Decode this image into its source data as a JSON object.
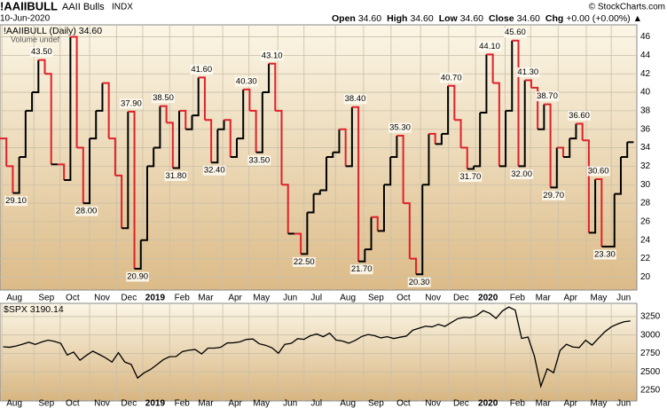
{
  "header": {
    "symbol": "!AAIIBULL",
    "name": "AAII Bulls",
    "exchange": "INDX",
    "date": "10-Jun-2020",
    "quote": [
      {
        "label": "Open",
        "value": "34.60"
      },
      {
        "label": "High",
        "value": "34.60"
      },
      {
        "label": "Low",
        "value": "34.60"
      },
      {
        "label": "Close",
        "value": "34.60"
      },
      {
        "label": "Chg",
        "value": "+0.00 (+0.00%) ▲"
      }
    ],
    "credit": "© StockCharts.com"
  },
  "chart_data": [
    {
      "type": "step",
      "legend": "!AAIIBULL (Daily) 34.60",
      "volume_note": "Volume undef",
      "series": [
        {
          "name": "!AAIIBULL",
          "color": "#000000",
          "down_color": "#e0202a",
          "values": [
            35,
            32,
            29.1,
            33,
            38,
            40,
            43.5,
            42,
            32.2,
            32.2,
            30.5,
            46,
            34,
            28,
            35,
            38,
            41,
            35,
            31,
            25.3,
            37.9,
            20.9,
            24,
            32,
            34,
            38.5,
            36.7,
            31.8,
            38,
            36,
            37.5,
            41.6,
            37,
            32.4,
            36,
            37,
            33,
            35,
            40.3,
            38,
            33.5,
            40,
            43.1,
            38,
            30,
            24.7,
            24.7,
            22.5,
            27,
            29,
            29.4,
            33,
            33.5,
            36,
            32,
            38.4,
            21.7,
            23,
            26.5,
            25,
            30,
            33,
            35.3,
            28,
            22,
            20.3,
            30,
            35.5,
            34.4,
            35.5,
            40.7,
            37,
            34,
            31.7,
            32,
            37.8,
            44.1,
            41,
            32,
            38,
            45.6,
            32,
            41.3,
            40.5,
            36,
            38.7,
            29.7,
            34,
            33,
            35,
            36.6,
            34.8,
            24.8,
            30.6,
            23.3,
            23.3,
            29,
            33,
            34.6
          ],
          "value_labels": [
            null,
            null,
            "29.10",
            null,
            null,
            null,
            "43.50",
            null,
            null,
            null,
            null,
            null,
            null,
            "28.00",
            null,
            null,
            null,
            null,
            null,
            null,
            "37.90",
            "20.90",
            null,
            null,
            null,
            "38.50",
            null,
            "31.80",
            null,
            null,
            null,
            "41.60",
            null,
            "32.40",
            null,
            null,
            null,
            null,
            "40.30",
            null,
            "33.50",
            null,
            "43.10",
            null,
            null,
            null,
            null,
            "22.50",
            null,
            null,
            null,
            null,
            null,
            null,
            null,
            "38.40",
            "21.70",
            null,
            null,
            null,
            null,
            null,
            "35.30",
            null,
            null,
            "20.30",
            null,
            null,
            null,
            null,
            "40.70",
            null,
            null,
            "31.70",
            null,
            null,
            "44.10",
            null,
            null,
            null,
            "45.60",
            "32.00",
            "41.30",
            null,
            null,
            "38.70",
            "29.70",
            null,
            null,
            null,
            "36.60",
            null,
            null,
            "30.60",
            "23.30",
            null,
            null,
            null,
            null
          ]
        }
      ],
      "xlim": [
        0,
        99.5
      ],
      "ylim": [
        18.6,
        47.3
      ],
      "yticks": [
        20,
        22,
        24,
        26,
        28,
        30,
        32,
        34,
        36,
        38,
        40,
        42,
        44,
        46
      ],
      "xticks": [
        {
          "value": 0.3,
          "label": "Aug"
        },
        {
          "value": 5.3,
          "label": "Sep"
        },
        {
          "value": 9.4,
          "label": "Oct"
        },
        {
          "value": 14,
          "label": "Nov"
        },
        {
          "value": 18.2,
          "label": "Dec"
        },
        {
          "value": 22.3,
          "label": "2019"
        },
        {
          "value": 26.5,
          "label": "Feb"
        },
        {
          "value": 30.2,
          "label": "Mar"
        },
        {
          "value": 34.8,
          "label": "Apr"
        },
        {
          "value": 38.9,
          "label": "May"
        },
        {
          "value": 43.4,
          "label": "Jun"
        },
        {
          "value": 47.5,
          "label": "Jul"
        },
        {
          "value": 52.4,
          "label": "Aug"
        },
        {
          "value": 56.8,
          "label": "Sep"
        },
        {
          "value": 61.1,
          "label": "Oct"
        },
        {
          "value": 65.7,
          "label": "Nov"
        },
        {
          "value": 70.1,
          "label": "Dec"
        },
        {
          "value": 74.3,
          "label": "2020"
        },
        {
          "value": 78.9,
          "label": "Feb"
        },
        {
          "value": 82.9,
          "label": "Mar"
        },
        {
          "value": 87.2,
          "label": "Apr"
        },
        {
          "value": 91.6,
          "label": "May"
        },
        {
          "value": 95.5,
          "label": "Jun"
        }
      ],
      "grid": true
    },
    {
      "type": "line",
      "legend": "$SPX 3190.14",
      "series": [
        {
          "name": "$SPX",
          "color": "#000000",
          "values": [
            2840,
            2833,
            2850,
            2874,
            2902,
            2872,
            2904,
            2930,
            2914,
            2886,
            2728,
            2768,
            2658,
            2723,
            2781,
            2736,
            2690,
            2632,
            2760,
            2633,
            2600,
            2416,
            2485,
            2531,
            2596,
            2664,
            2706,
            2707,
            2775,
            2793,
            2803,
            2743,
            2822,
            2822,
            2834,
            2892,
            2895,
            2907,
            2940,
            2946,
            2881,
            2860,
            2826,
            2752,
            2873,
            2886,
            2950,
            2941,
            2990,
            3013,
            2977,
            3026,
            2932,
            2918,
            2889,
            2926,
            2979,
            3007,
            2992,
            2961,
            2977,
            2952,
            2970,
            2986,
            3066,
            3093,
            3120,
            3110,
            3145,
            3117,
            3169,
            3221,
            3240,
            3234,
            3265,
            3330,
            3295,
            3225,
            3327,
            3380,
            3337,
            2954,
            2972,
            2711,
            2304,
            2541,
            2488,
            2790,
            2874,
            2837,
            2830,
            2929,
            2863,
            2955,
            3044,
            3110,
            3150,
            3180,
            3190.14
          ]
        }
      ],
      "xlim": [
        0,
        99.5
      ],
      "ylim": [
        2105,
        3430
      ],
      "yticks": [
        2250,
        2500,
        2750,
        3000,
        3250
      ],
      "xticks": [
        {
          "value": 0.3,
          "label": "Aug"
        },
        {
          "value": 5.3,
          "label": "Sep"
        },
        {
          "value": 9.4,
          "label": "Oct"
        },
        {
          "value": 14,
          "label": "Nov"
        },
        {
          "value": 18.2,
          "label": "Dec"
        },
        {
          "value": 22.3,
          "label": "2019"
        },
        {
          "value": 26.5,
          "label": "Feb"
        },
        {
          "value": 30.2,
          "label": "Mar"
        },
        {
          "value": 34.8,
          "label": "Apr"
        },
        {
          "value": 38.9,
          "label": "May"
        },
        {
          "value": 43.4,
          "label": "Jun"
        },
        {
          "value": 47.5,
          "label": "Jul"
        },
        {
          "value": 52.4,
          "label": "Aug"
        },
        {
          "value": 56.8,
          "label": "Sep"
        },
        {
          "value": 61.1,
          "label": "Oct"
        },
        {
          "value": 65.7,
          "label": "Nov"
        },
        {
          "value": 70.1,
          "label": "Dec"
        },
        {
          "value": 74.3,
          "label": "2020"
        },
        {
          "value": 78.9,
          "label": "Feb"
        },
        {
          "value": 82.9,
          "label": "Mar"
        },
        {
          "value": 87.2,
          "label": "Apr"
        },
        {
          "value": 91.6,
          "label": "May"
        },
        {
          "value": 95.5,
          "label": "Jun"
        }
      ],
      "grid": true
    }
  ]
}
